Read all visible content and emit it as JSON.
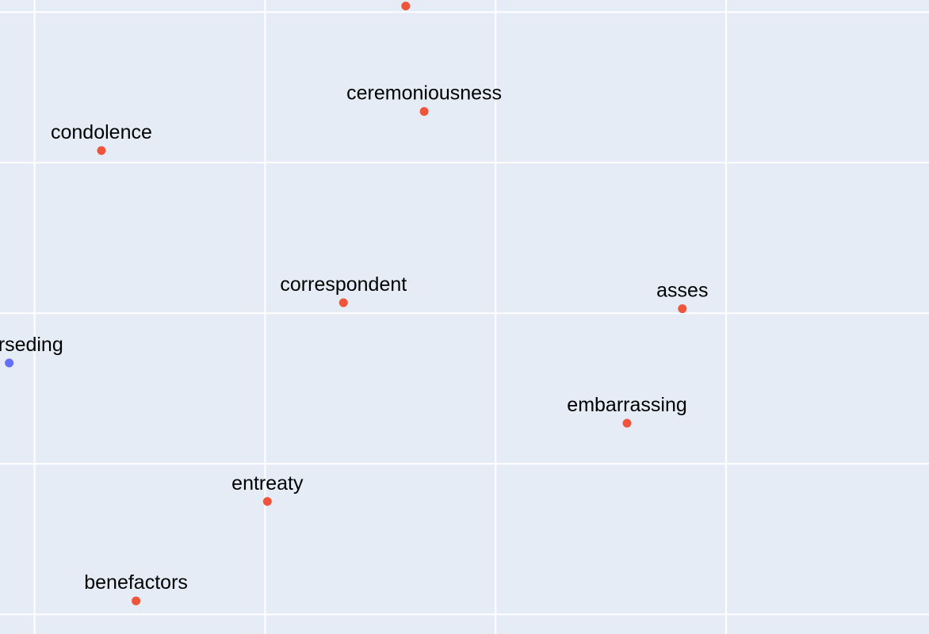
{
  "chart_data": {
    "type": "scatter",
    "title": "",
    "xlabel": "",
    "ylabel": "",
    "grid": true,
    "xlim": [
      -0.15,
      3.88
    ],
    "ylim": [
      -0.13,
      4.08
    ],
    "series": [
      {
        "color": "#ef553b",
        "points": [
          {
            "label": "",
            "x": 1.61,
            "y": 4.04
          },
          {
            "label": "ceremoniousness",
            "x": 1.69,
            "y": 3.34
          },
          {
            "label": "condolence",
            "x": 0.29,
            "y": 3.08
          },
          {
            "label": "correspondent",
            "x": 1.34,
            "y": 2.07
          },
          {
            "label": "asses",
            "x": 2.81,
            "y": 2.03
          },
          {
            "label": "embarrassing",
            "x": 2.57,
            "y": 1.27
          },
          {
            "label": "entreaty",
            "x": 1.01,
            "y": 0.75
          },
          {
            "label": "benefactors",
            "x": 0.44,
            "y": 0.09
          }
        ]
      },
      {
        "color": "#636efa",
        "points": [
          {
            "label": "superseding",
            "x": -0.11,
            "y": 1.67
          }
        ]
      }
    ],
    "colors": {
      "background": "#e5ecf6",
      "grid": "#ffffff",
      "series_red": "#ef553b",
      "series_blue": "#636efa"
    }
  }
}
